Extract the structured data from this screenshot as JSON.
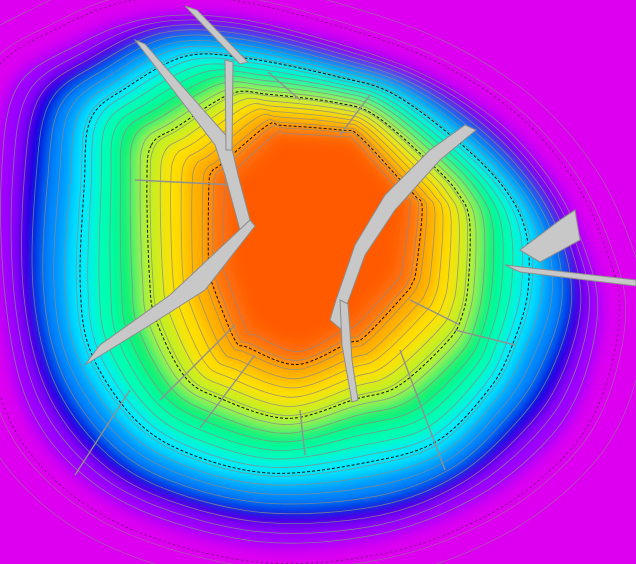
{
  "map": {
    "type": "contour-heatmap",
    "labels": [],
    "legend": null,
    "colors": {
      "background": "#ffffff",
      "outer": "#dd00f0",
      "level_1": "#9a00ff",
      "level_2": "#0000e0",
      "level_3": "#0090ff",
      "level_4": "#00e8ff",
      "level_5": "#00ffb0",
      "level_6": "#10f070",
      "level_7": "#c0f020",
      "level_8": "#ffe000",
      "level_9": "#ffb000",
      "level_10": "#ff7010",
      "core": "#ff5a00",
      "fault": "#c8c8c8",
      "fault_edge": "#8c8c8c",
      "contour_line": "#8a8a8a",
      "dashed_line": "#111111"
    },
    "contour_count": 22,
    "fault_count": 9,
    "scale_bar": "none",
    "north_arrow": "none"
  }
}
